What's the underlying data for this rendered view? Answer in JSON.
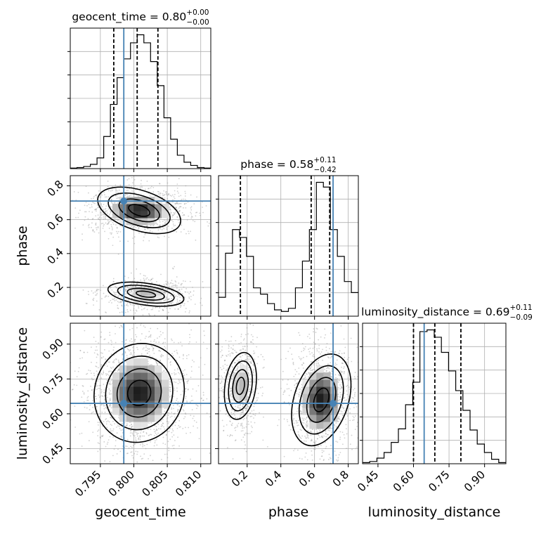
{
  "chart_data": {
    "type": "corner",
    "parameters": [
      "geocent_time",
      "phase",
      "luminosity_distance"
    ],
    "injection_color": "#4682b4",
    "axis_labels": {
      "x": [
        "geocent_time",
        "phase",
        "luminosity_distance"
      ],
      "y": [
        "phase",
        "luminosity_distance"
      ]
    },
    "titles": {
      "geocent_time": {
        "prefix": "geocent_time = ",
        "value": "0.80",
        "plus": "+0.00",
        "minus": "−0.00"
      },
      "phase": {
        "prefix": "phase = ",
        "value": "0.58",
        "plus": "+0.11",
        "minus": "−0.42"
      },
      "luminosity_distance": {
        "prefix": "luminosity_distance = ",
        "value": "0.69",
        "plus": "+0.11",
        "minus": "−0.09"
      }
    },
    "ranges": {
      "geocent_time": [
        0.7905,
        0.8115
      ],
      "phase": [
        0.03,
        0.86
      ],
      "luminosity_distance": [
        0.385,
        0.99
      ]
    },
    "ticks": {
      "geocent_time": [
        0.795,
        0.8,
        0.805,
        0.81
      ],
      "phase": [
        0.2,
        0.4,
        0.6,
        0.8
      ],
      "luminosity_distance": [
        0.45,
        0.6,
        0.75,
        0.9
      ]
    },
    "tick_labels": {
      "geocent_time": [
        "0.795",
        "0.800",
        "0.805",
        "0.810"
      ],
      "phase": [
        "0.2",
        "0.4",
        "0.6",
        "0.8"
      ],
      "luminosity_distance": [
        "0.45",
        "0.60",
        "0.75",
        "0.90"
      ]
    },
    "truths": {
      "geocent_time": 0.7985,
      "phase": 0.71,
      "luminosity_distance": 0.645
    },
    "quantiles": {
      "geocent_time": [
        0.797,
        0.8005,
        0.8036
      ],
      "phase": [
        0.16,
        0.58,
        0.69
      ],
      "luminosity_distance": [
        0.6,
        0.69,
        0.8
      ]
    },
    "histograms": {
      "geocent_time": {
        "edges": [
          0.7905,
          0.7915,
          0.7925,
          0.7935,
          0.7945,
          0.7955,
          0.7965,
          0.7975,
          0.7985,
          0.7995,
          0.8005,
          0.8015,
          0.8025,
          0.8035,
          0.8045,
          0.8055,
          0.8065,
          0.8075,
          0.8085,
          0.8095,
          0.8105,
          0.8115
        ],
        "counts": [
          1,
          2,
          4,
          8,
          20,
          60,
          120,
          170,
          205,
          235,
          250,
          235,
          200,
          155,
          95,
          55,
          25,
          12,
          6,
          2,
          1
        ]
      },
      "phase": {
        "edges": [
          0.03,
          0.0715,
          0.113,
          0.1545,
          0.196,
          0.2375,
          0.279,
          0.3205,
          0.362,
          0.4035,
          0.445,
          0.4865,
          0.528,
          0.5695,
          0.611,
          0.6525,
          0.694,
          0.7355,
          0.777,
          0.8185,
          0.86
        ],
        "counts": [
          12,
          40,
          55,
          50,
          38,
          18,
          14,
          8,
          4,
          3,
          5,
          18,
          35,
          55,
          85,
          82,
          55,
          38,
          22,
          15
        ]
      },
      "luminosity_distance": {
        "edges": [
          0.385,
          0.41525,
          0.4455,
          0.47575,
          0.506,
          0.53625,
          0.5665,
          0.59675,
          0.627,
          0.65725,
          0.6875,
          0.71775,
          0.748,
          0.77825,
          0.8085,
          0.83875,
          0.869,
          0.89925,
          0.9295,
          0.95975,
          0.99
        ],
        "counts": [
          2,
          4,
          10,
          20,
          38,
          62,
          105,
          145,
          235,
          238,
          225,
          198,
          165,
          130,
          95,
          60,
          35,
          20,
          8,
          2
        ]
      }
    },
    "density_blobs": {
      "geocent_time__phase": [
        {
          "cx": 0.8008,
          "cy": 0.655,
          "sx": 0.003,
          "sy": 0.055,
          "w": 0.65
        },
        {
          "cx": 0.8018,
          "cy": 0.16,
          "sx": 0.0028,
          "sy": 0.04,
          "w": 0.35
        }
      ],
      "geocent_time__luminosity_distance": [
        {
          "cx": 0.8008,
          "cy": 0.69,
          "sx": 0.0031,
          "sy": 0.1,
          "w": 1.0
        }
      ],
      "phase__luminosity_distance": [
        {
          "cx": 0.16,
          "cy": 0.72,
          "sx": 0.045,
          "sy": 0.09,
          "w": 0.35
        },
        {
          "cx": 0.64,
          "cy": 0.66,
          "sx": 0.075,
          "sy": 0.095,
          "w": 0.65
        }
      ]
    }
  }
}
